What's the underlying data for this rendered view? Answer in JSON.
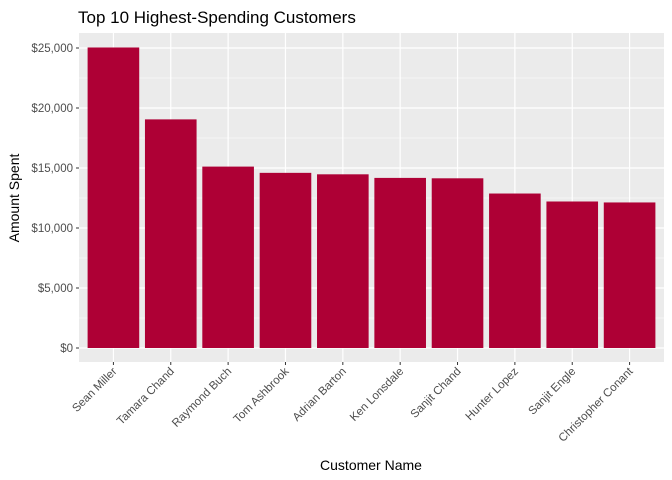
{
  "chart_data": {
    "type": "bar",
    "title": "Top 10 Highest-Spending Customers",
    "xlabel": "Customer Name",
    "ylabel": "Amount Spent",
    "categories": [
      "Sean Miller",
      "Tamara Chand",
      "Raymond Buch",
      "Tom Ashbrook",
      "Adrian Barton",
      "Ken Lonsdale",
      "Sanjit Chand",
      "Hunter Lopez",
      "Sanjit Engle",
      "Christopher Conant"
    ],
    "values": [
      25043,
      19052,
      15117,
      14596,
      14474,
      14175,
      14142,
      12873,
      12209,
      12129
    ],
    "ylim": [
      0,
      26000
    ],
    "yticks": [
      0,
      5000,
      10000,
      15000,
      20000,
      25000
    ],
    "ytick_labels": [
      "$0",
      "$5,000",
      "$10,000",
      "$15,000",
      "$20,000",
      "$25,000"
    ],
    "bar_color": "#AE0035",
    "panel_color": "#EBEBEB",
    "grid": true,
    "legend": "none"
  }
}
